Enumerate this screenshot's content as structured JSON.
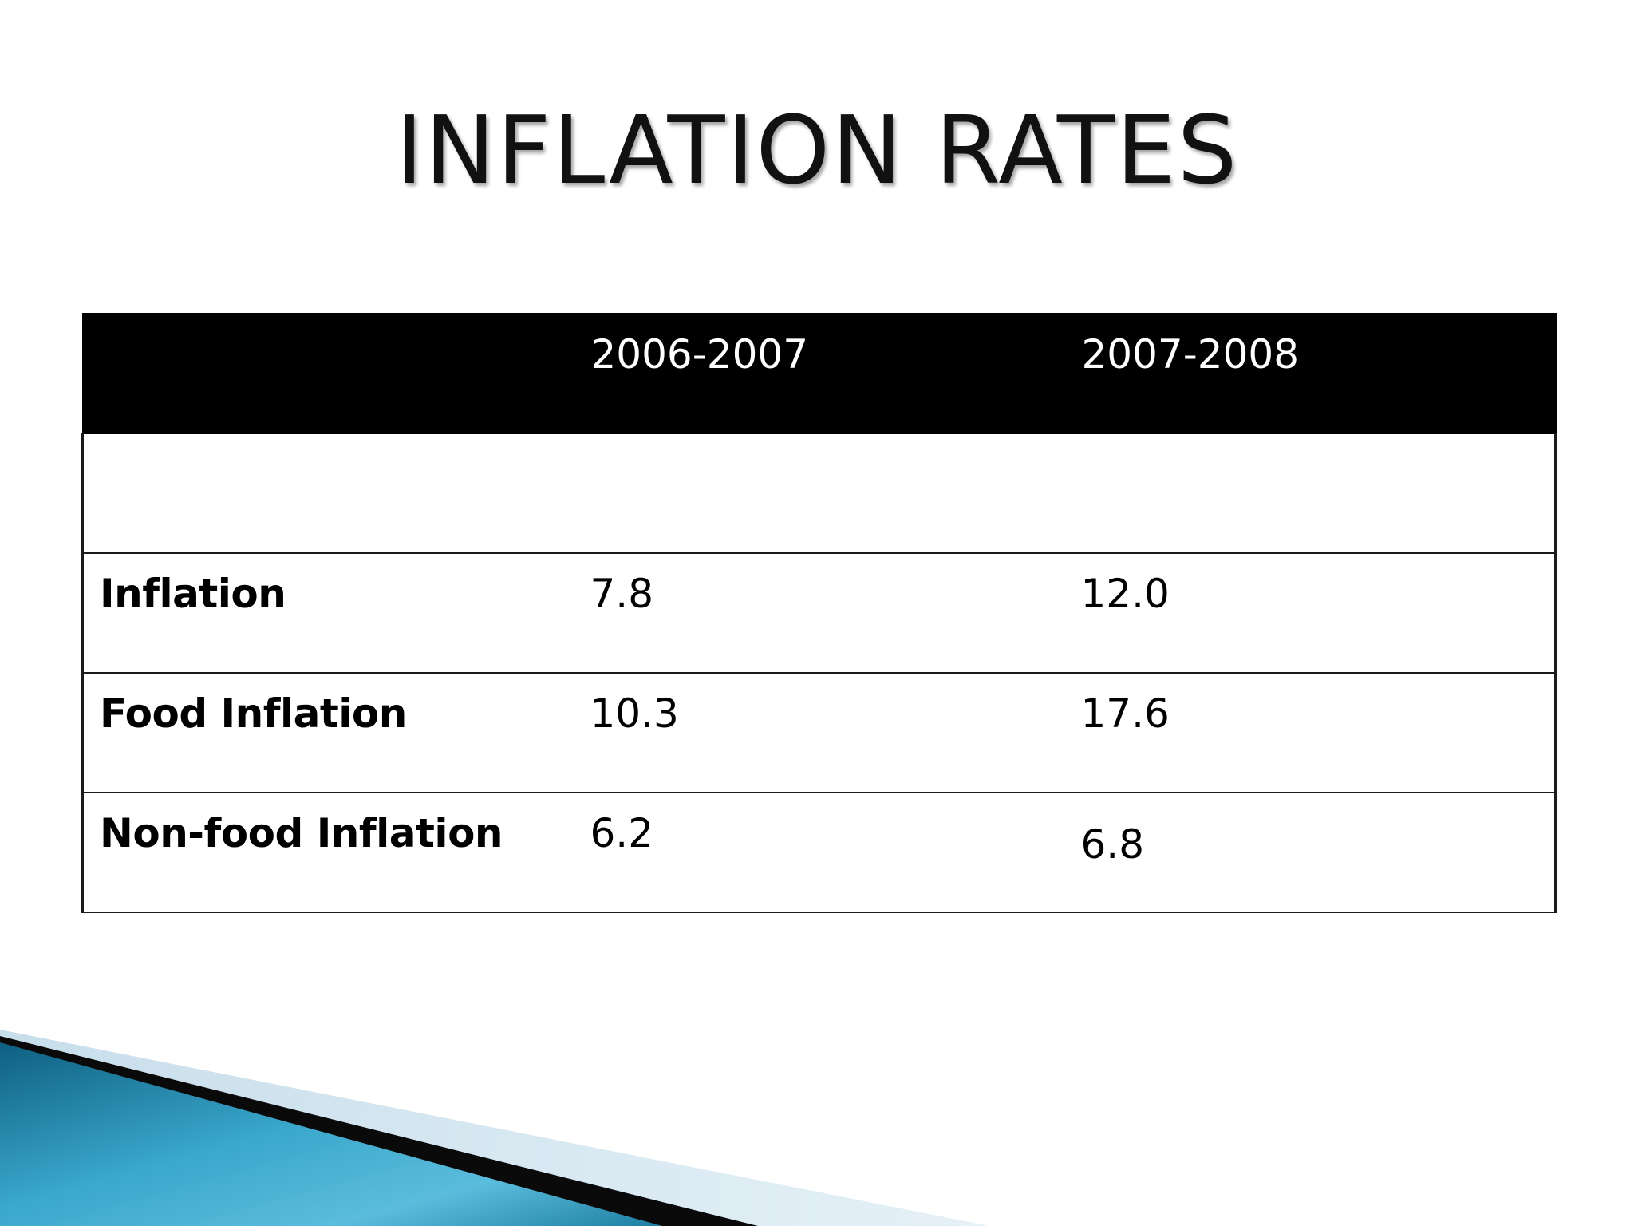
{
  "slide": {
    "title": "INFLATION RATES"
  },
  "table": {
    "headers": [
      "",
      "2006-2007",
      "2007-2008"
    ],
    "rows": [
      [
        "",
        "",
        ""
      ],
      [
        "Inflation",
        "7.8",
        "12.0"
      ],
      [
        "Food Inflation",
        "10.3",
        "17.6"
      ],
      [
        "Non-food Inflation",
        "6.2",
        "6.8"
      ]
    ]
  },
  "colors": {
    "header_bg": "#000000",
    "header_text": "#ffffff",
    "accent_teal": "#1f86a8",
    "accent_light": "#d6e8f2"
  }
}
